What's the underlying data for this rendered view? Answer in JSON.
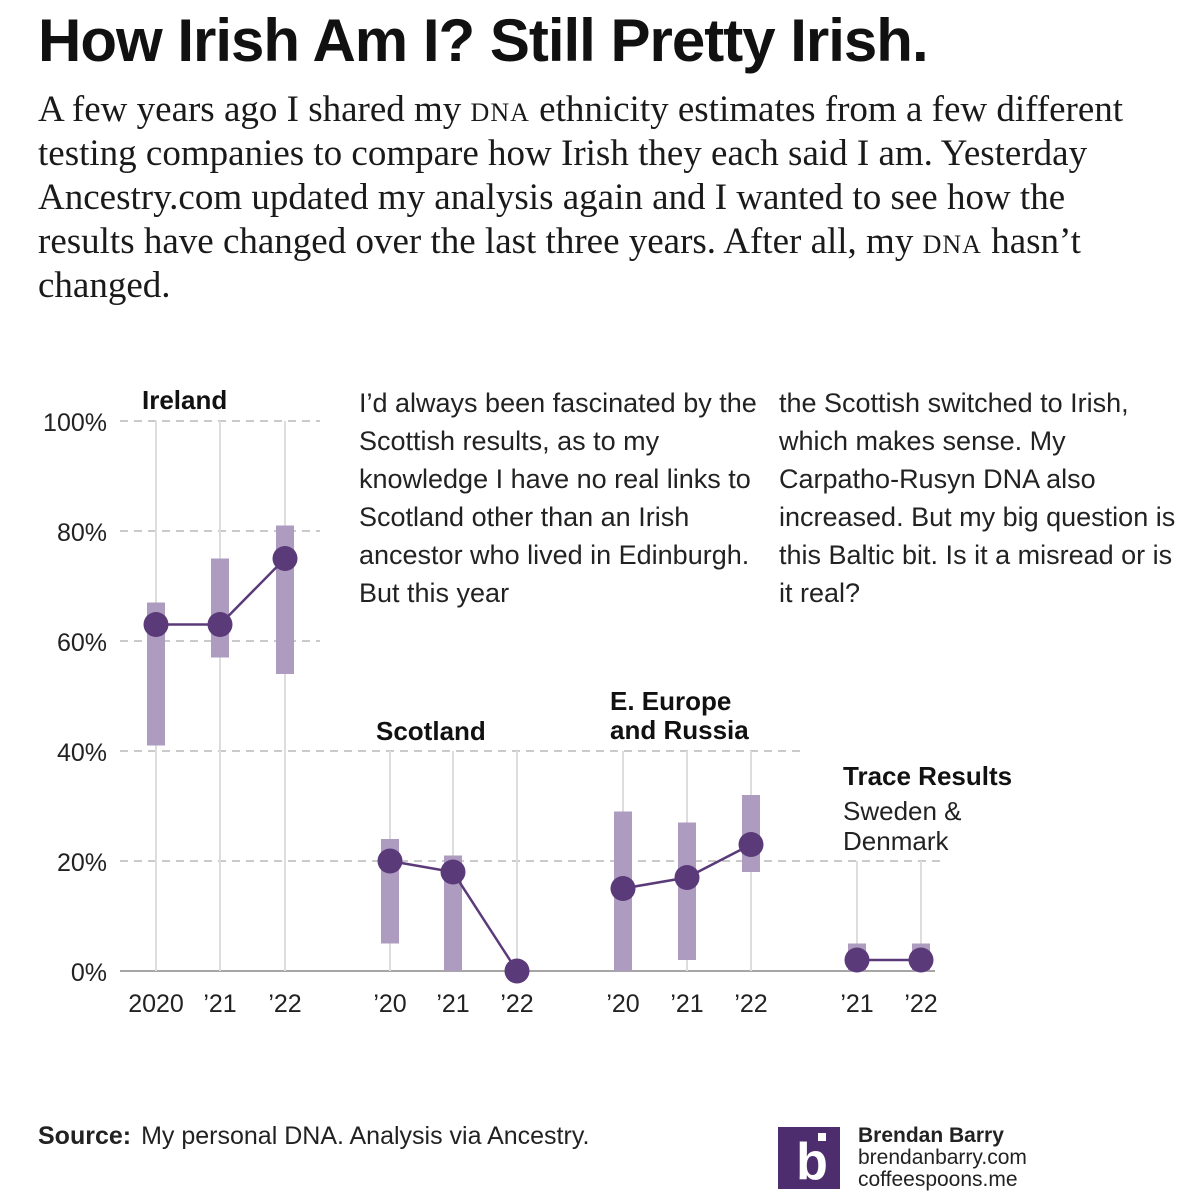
{
  "header": {
    "title": "How Irish Am I? Still Pretty Irish.",
    "intro": [
      {
        "t": "A few years ago I shared my ",
        "sc": false
      },
      {
        "t": "DNA",
        "sc": true
      },
      {
        "t": " ethnicity estimates from a few different testing companies to compare how Irish they each said I am. Yesterday Ancestry.com updated my analysis again and I wanted to see how the results have changed over the last three years. After all, my ",
        "sc": false
      },
      {
        "t": "DNA",
        "sc": true
      },
      {
        "t": " hasn’t changed.",
        "sc": false
      }
    ]
  },
  "annotations": {
    "left": "I’d always been fascinated by the Scottish results, as to my knowledge I have no real links to Scotland other than an Irish ancestor who lived in Edinburgh. But this year",
    "right": "the Scottish switched to Irish, which makes sense. My Carpatho-Rusyn DNA also increased. But my big question is this Baltic bit. Is it a misread or is it real?"
  },
  "colors": {
    "point": "#5b3a7a",
    "range": "#ad9cbf",
    "gridline": "#aaaaaa",
    "stem": "#dddddd",
    "axis": "#888888",
    "logo_bg": "#4e2d6e"
  },
  "chart_data": {
    "type": "dot-range",
    "y_ticks": [
      "100%",
      "80%",
      "60%",
      "40%",
      "20%",
      "0%"
    ],
    "y_tick_values": [
      100,
      80,
      60,
      40,
      20,
      0
    ],
    "ylim": [
      0,
      100
    ],
    "groups": [
      {
        "name": "Ireland",
        "subtitle": "",
        "points": [
          {
            "label": "2020",
            "value": 63,
            "low": 41,
            "high": 67
          },
          {
            "label": "’21",
            "value": 63,
            "low": 57,
            "high": 75
          },
          {
            "label": "’22",
            "value": 75,
            "low": 54,
            "high": 81
          }
        ]
      },
      {
        "name": "Scotland",
        "subtitle": "",
        "points": [
          {
            "label": "’20",
            "value": 20,
            "low": 5,
            "high": 24
          },
          {
            "label": "’21",
            "value": 18,
            "low": 0,
            "high": 21
          },
          {
            "label": "’22",
            "value": 0,
            "low": null,
            "high": null
          }
        ]
      },
      {
        "name": "E. Europe and Russia",
        "subtitle": "",
        "points": [
          {
            "label": "’20",
            "value": 15,
            "low": 0,
            "high": 29
          },
          {
            "label": "’21",
            "value": 17,
            "low": 2,
            "high": 27
          },
          {
            "label": "’22",
            "value": 23,
            "low": 18,
            "high": 32
          }
        ]
      },
      {
        "name": "Trace Results",
        "subtitle": "Sweden & Denmark",
        "points": [
          {
            "label": "’21",
            "value": 2,
            "low": 0,
            "high": 5
          },
          {
            "label": "’22",
            "value": 2,
            "low": 0,
            "high": 5
          }
        ]
      }
    ]
  },
  "footer": {
    "source_label": "Source:",
    "source_text": "My personal DNA. Analysis via Ancestry.",
    "author": "Brendan Barry",
    "site1": "brendanbarry.com",
    "site2": "coffeespoons.me",
    "logo_letter": "b"
  }
}
